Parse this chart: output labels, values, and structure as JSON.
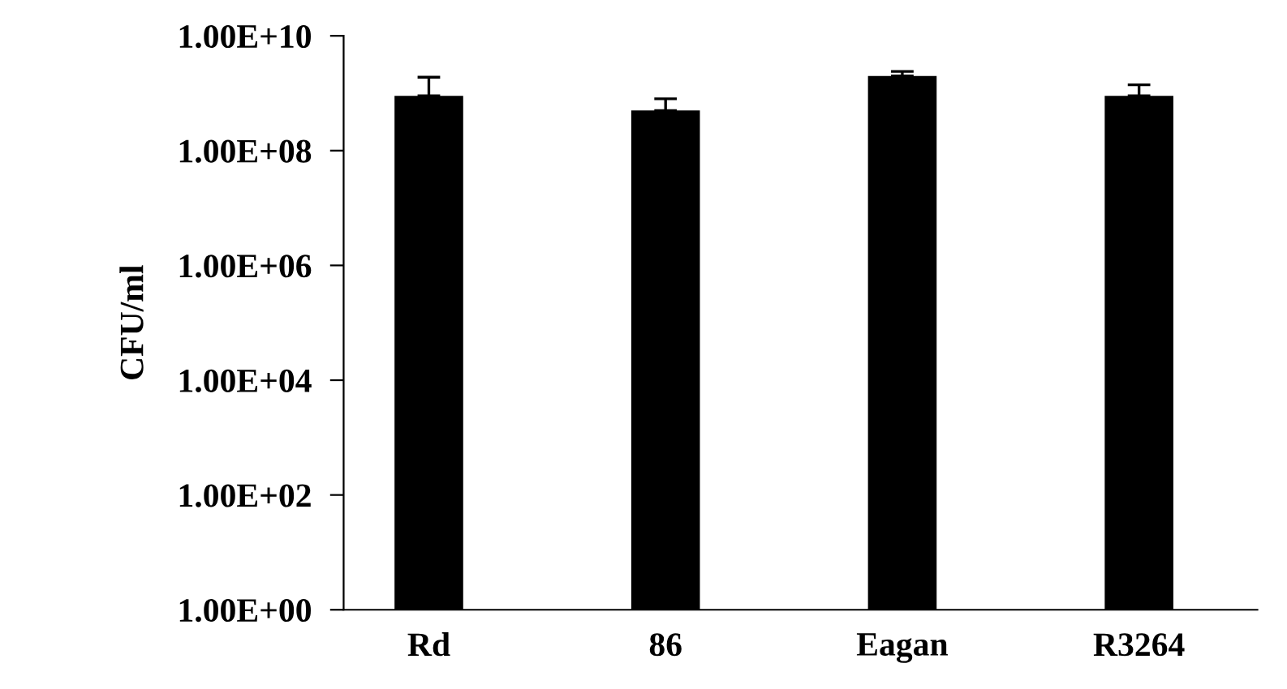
{
  "chart_data": {
    "type": "bar",
    "ylabel": "CFU/ml",
    "categories": [
      "Rd",
      "86",
      "Eagan",
      "R3264"
    ],
    "values": [
      900000000.0,
      500000000.0,
      2000000000.0,
      900000000.0
    ],
    "errors": [
      [
        900000000.0,
        1900000000.0
      ],
      [
        500000000.0,
        800000000.0
      ],
      [
        2000000000.0,
        2400000000.0
      ],
      [
        900000000.0,
        1400000000.0
      ]
    ],
    "color": "#000000",
    "log": "y",
    "ylim": [
      1,
      10000000000.0
    ],
    "yticks": [
      {
        "value": 1,
        "label": "1.00E+00"
      },
      {
        "value": 100,
        "label": "1.00E+02"
      },
      {
        "value": 10000,
        "label": "1.00E+04"
      },
      {
        "value": 1000000,
        "label": "1.00E+06"
      },
      {
        "value": 100000000,
        "label": "1.00E+08"
      },
      {
        "value": 10000000000,
        "label": "1.00E+10"
      }
    ],
    "grid": false,
    "legend": false
  }
}
